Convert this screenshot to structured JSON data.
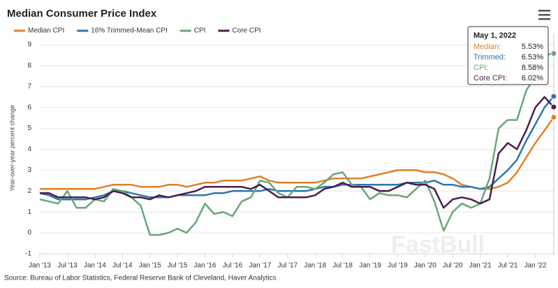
{
  "chart_data": {
    "type": "line",
    "title": "Median Consumer Price Index",
    "y_label": "Year-over-year percent change",
    "source": "Source: Bureau of Labor Statistics, Federal Reserve Bank of Cleveland, Haver Analytics",
    "watermark": "FastBull",
    "x": [
      "2013-01",
      "2013-03",
      "2013-05",
      "2013-07",
      "2013-09",
      "2013-11",
      "2014-01",
      "2014-03",
      "2014-05",
      "2014-07",
      "2014-09",
      "2014-11",
      "2015-01",
      "2015-03",
      "2015-05",
      "2015-07",
      "2015-09",
      "2015-11",
      "2016-01",
      "2016-03",
      "2016-05",
      "2016-07",
      "2016-09",
      "2016-11",
      "2017-01",
      "2017-03",
      "2017-05",
      "2017-07",
      "2017-09",
      "2017-11",
      "2018-01",
      "2018-03",
      "2018-05",
      "2018-07",
      "2018-09",
      "2018-11",
      "2019-01",
      "2019-03",
      "2019-05",
      "2019-07",
      "2019-09",
      "2019-11",
      "2020-01",
      "2020-03",
      "2020-05",
      "2020-07",
      "2020-09",
      "2020-11",
      "2021-01",
      "2021-03",
      "2021-05",
      "2021-07",
      "2021-09",
      "2021-11",
      "2022-01",
      "2022-03",
      "2022-05"
    ],
    "series": [
      {
        "name": "Median CPI",
        "color": "#e0802a",
        "values": [
          2.1,
          2.1,
          2.1,
          2.1,
          2.1,
          2.1,
          2.1,
          2.2,
          2.3,
          2.3,
          2.3,
          2.2,
          2.2,
          2.2,
          2.3,
          2.3,
          2.2,
          2.3,
          2.4,
          2.4,
          2.5,
          2.5,
          2.5,
          2.6,
          2.7,
          2.5,
          2.4,
          2.4,
          2.4,
          2.4,
          2.4,
          2.5,
          2.6,
          2.6,
          2.6,
          2.6,
          2.7,
          2.8,
          2.9,
          3.0,
          3.0,
          3.0,
          2.9,
          2.9,
          2.8,
          2.6,
          2.3,
          2.2,
          2.1,
          2.1,
          2.2,
          2.4,
          2.9,
          3.6,
          4.3,
          4.9,
          5.53
        ]
      },
      {
        "name": "16% Trimmed-Mean CPI",
        "color": "#2b78ad",
        "values": [
          1.9,
          1.8,
          1.6,
          1.6,
          1.6,
          1.6,
          1.7,
          1.8,
          2.0,
          2.0,
          1.9,
          1.8,
          1.7,
          1.7,
          1.7,
          1.8,
          1.8,
          1.8,
          1.8,
          1.9,
          1.9,
          2.0,
          2.0,
          2.0,
          2.0,
          2.1,
          2.0,
          2.0,
          2.0,
          2.0,
          2.1,
          2.2,
          2.2,
          2.3,
          2.3,
          2.3,
          2.3,
          2.3,
          2.3,
          2.3,
          2.4,
          2.4,
          2.4,
          2.5,
          2.3,
          2.3,
          2.2,
          2.2,
          2.1,
          2.2,
          2.6,
          3.0,
          3.5,
          4.4,
          5.2,
          6.0,
          6.53
        ]
      },
      {
        "name": "CPI",
        "color": "#69a67a",
        "values": [
          1.6,
          1.5,
          1.4,
          2.0,
          1.2,
          1.2,
          1.6,
          1.5,
          2.1,
          2.0,
          1.7,
          1.3,
          -0.1,
          -0.1,
          0.0,
          0.2,
          0.0,
          0.5,
          1.4,
          0.9,
          1.0,
          0.8,
          1.5,
          1.7,
          2.5,
          2.4,
          1.9,
          1.7,
          2.2,
          2.2,
          2.1,
          2.4,
          2.8,
          2.9,
          2.3,
          2.2,
          1.6,
          1.9,
          1.8,
          1.8,
          1.7,
          2.1,
          2.5,
          1.5,
          0.1,
          1.0,
          1.4,
          1.2,
          1.4,
          2.6,
          5.0,
          5.4,
          5.4,
          6.8,
          7.5,
          8.5,
          8.58
        ]
      },
      {
        "name": "Core CPI",
        "color": "#4a1d4f",
        "values": [
          1.9,
          1.9,
          1.7,
          1.7,
          1.7,
          1.7,
          1.6,
          1.7,
          2.0,
          1.9,
          1.7,
          1.7,
          1.6,
          1.8,
          1.7,
          1.8,
          1.9,
          2.0,
          2.2,
          2.2,
          2.2,
          2.2,
          2.2,
          2.1,
          2.3,
          2.0,
          1.7,
          1.7,
          1.7,
          1.7,
          1.8,
          2.1,
          2.2,
          2.4,
          2.2,
          2.2,
          2.2,
          2.0,
          2.0,
          2.2,
          2.4,
          2.3,
          2.3,
          2.1,
          1.2,
          1.6,
          1.7,
          1.6,
          1.4,
          1.6,
          3.8,
          4.3,
          4.0,
          4.9,
          6.0,
          6.5,
          6.02
        ]
      }
    ],
    "xticks": [
      {
        "value": "2013-01",
        "label": "Jan '13"
      },
      {
        "value": "2013-07",
        "label": "Jul '13"
      },
      {
        "value": "2014-01",
        "label": "Jan '14"
      },
      {
        "value": "2014-07",
        "label": "Jul '14"
      },
      {
        "value": "2015-01",
        "label": "Jan '15"
      },
      {
        "value": "2015-07",
        "label": "Jul '15"
      },
      {
        "value": "2016-01",
        "label": "Jan '16"
      },
      {
        "value": "2016-07",
        "label": "Jul '16"
      },
      {
        "value": "2017-01",
        "label": "Jan '17"
      },
      {
        "value": "2017-07",
        "label": "Jul '17"
      },
      {
        "value": "2018-01",
        "label": "Jan '18"
      },
      {
        "value": "2018-07",
        "label": "Jul '18"
      },
      {
        "value": "2019-01",
        "label": "Jan '19"
      },
      {
        "value": "2019-07",
        "label": "Jul '19"
      },
      {
        "value": "2020-01",
        "label": "Jan '20"
      },
      {
        "value": "2020-07",
        "label": "Jul '20"
      },
      {
        "value": "2021-01",
        "label": "Jan '21"
      },
      {
        "value": "2021-07",
        "label": "Jul '21"
      },
      {
        "value": "2022-01",
        "label": "Jan '22"
      }
    ],
    "ylim": [
      -1,
      9.5
    ],
    "yticks": [
      -1,
      0,
      1,
      2,
      3,
      4,
      5,
      6,
      7,
      8,
      9
    ],
    "grid": true,
    "legend": "top-left",
    "tooltip": {
      "title": "May 1, 2022",
      "rows": [
        {
          "label": "Median:",
          "value": "5.53%"
        },
        {
          "label": "Trimmed:",
          "value": "6.53%"
        },
        {
          "label": "CPI:",
          "value": "8.58%"
        },
        {
          "label": "Core CPI:",
          "value": "6.02%"
        }
      ]
    }
  }
}
